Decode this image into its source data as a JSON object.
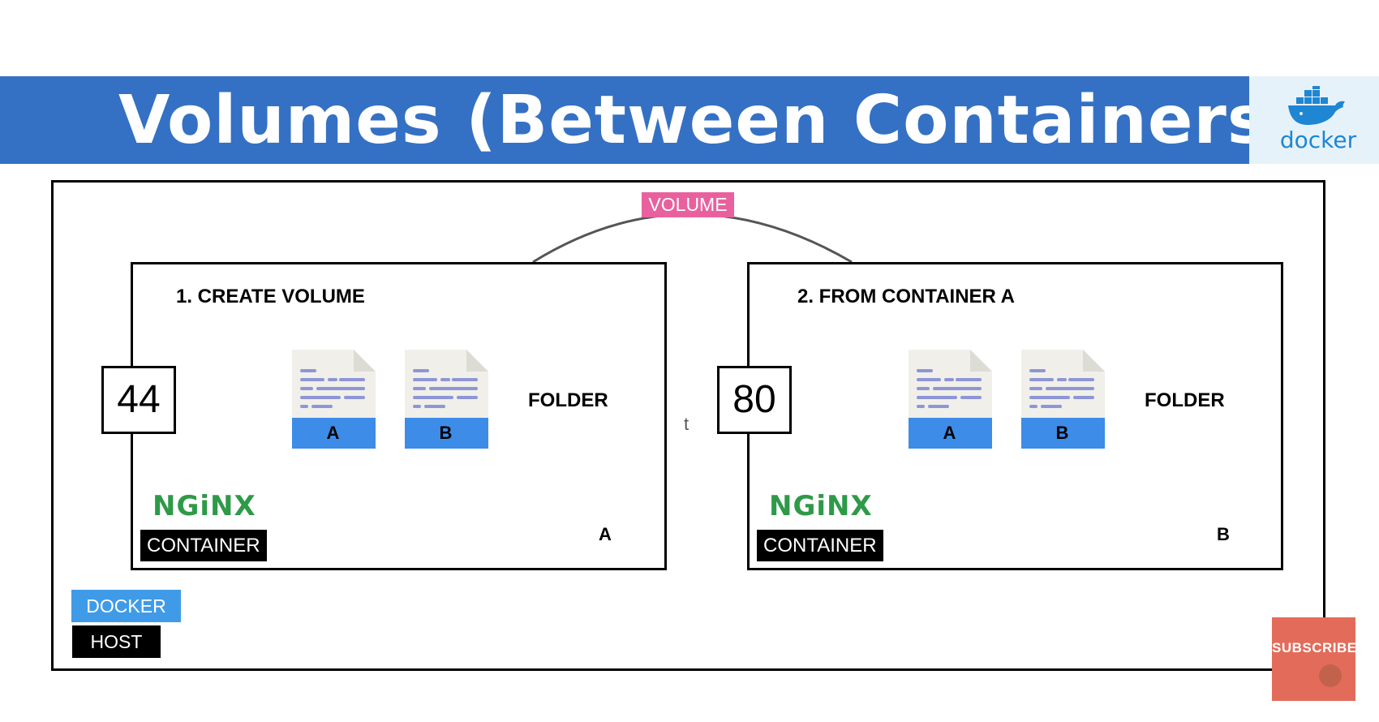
{
  "header": {
    "title": "Volumes (Between Containers)",
    "logo_word": "docker",
    "logo_icon": "docker-whale-icon",
    "bar_color": "#3471c4",
    "logo_bg": "#e6f2fa"
  },
  "volume_tag": "VOLUME",
  "containers": [
    {
      "id": "a",
      "step": "1. CREATE VOLUME",
      "port": "44",
      "files": [
        "A",
        "B"
      ],
      "folder": "FOLDER",
      "logo": "NGiNX",
      "tag": "CONTAINER",
      "letter": "A"
    },
    {
      "id": "b",
      "step": "2. FROM CONTAINER A",
      "port": "80",
      "files": [
        "A",
        "B"
      ],
      "folder": "FOLDER",
      "logo": "NGiNX",
      "tag": "CONTAINER",
      "letter": "B"
    }
  ],
  "stray_text": "t",
  "host": {
    "docker_label": "DOCKER",
    "host_label": "HOST"
  },
  "subscribe": "SUBSCRIBE",
  "colors": {
    "volume": "#e8619e",
    "docker_tag": "#3f9be7",
    "file_band": "#3d8ce8",
    "nginx": "#2e9a48",
    "subscribe": "#e36b5a"
  }
}
